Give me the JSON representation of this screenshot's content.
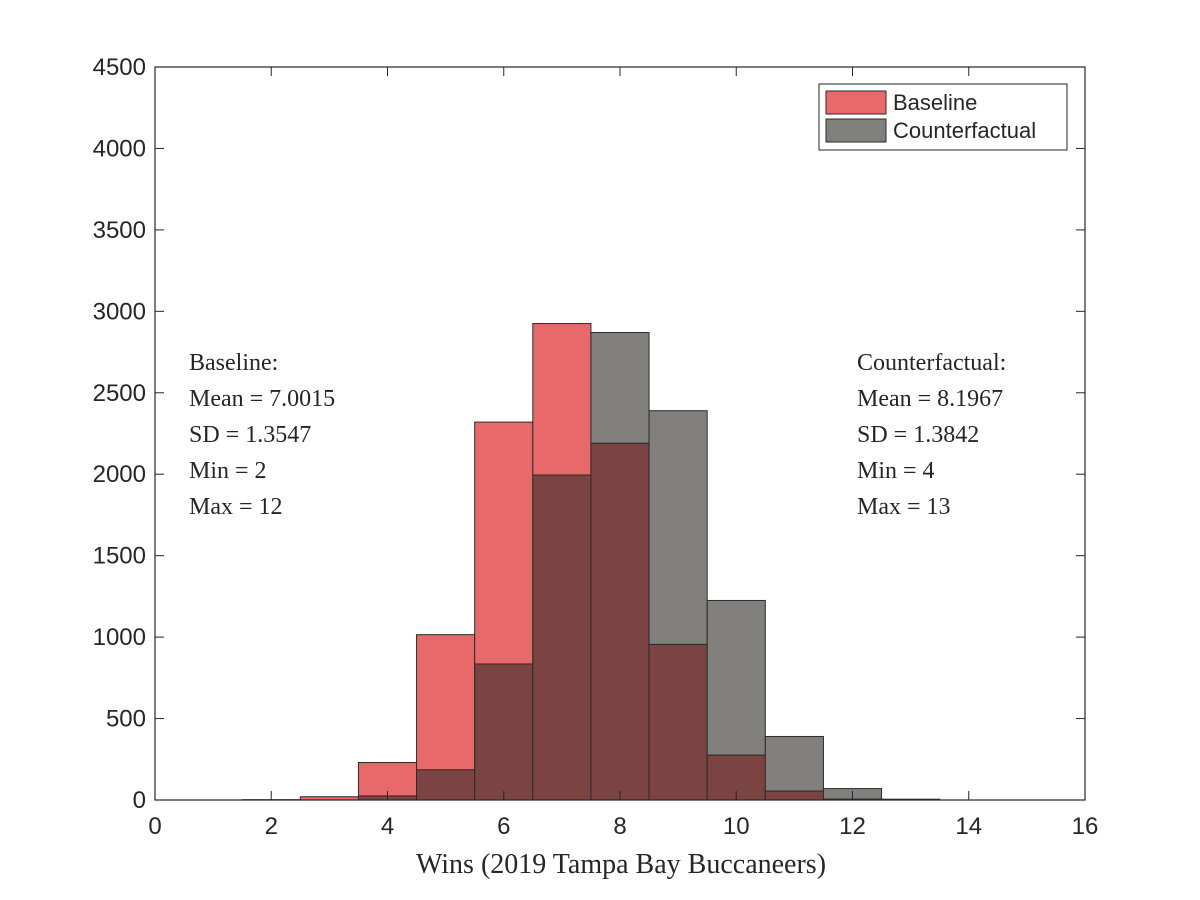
{
  "chart_data": {
    "type": "bar",
    "subtype": "overlaid-histogram",
    "title": "",
    "xlabel": "Wins (2019 Tampa Bay Buccaneers)",
    "ylabel": "",
    "xlim": [
      0,
      16
    ],
    "ylim": [
      0,
      4500
    ],
    "xticks": [
      0,
      2,
      4,
      6,
      8,
      10,
      12,
      14,
      16
    ],
    "yticks": [
      0,
      500,
      1000,
      1500,
      2000,
      2500,
      3000,
      3500,
      4000,
      4500
    ],
    "bin_width": 1,
    "bin_centers": [
      2,
      3,
      4,
      5,
      6,
      7,
      8,
      9,
      10,
      11,
      12,
      13
    ],
    "grid": false,
    "legend_position": "top-right",
    "series": [
      {
        "name": "Baseline",
        "color": "#e8696a",
        "values": [
          2,
          20,
          230,
          1015,
          2320,
          2925,
          2190,
          955,
          275,
          55,
          5,
          0
        ]
      },
      {
        "name": "Counterfactual",
        "color": "#82807c",
        "values": [
          0,
          0,
          25,
          185,
          835,
          1995,
          2870,
          2390,
          1225,
          390,
          70,
          5
        ]
      }
    ],
    "overlap_color": "#7b4342",
    "annotations": [
      {
        "series": "Baseline",
        "position": "left",
        "lines": [
          "Baseline:",
          "Mean = 7.0015",
          "SD = 1.3547",
          "Min = 2",
          "Max = 12"
        ]
      },
      {
        "series": "Counterfactual",
        "position": "right",
        "lines": [
          "Counterfactual:",
          "Mean = 8.1967",
          "SD = 1.3842",
          "Min = 4",
          "Max = 13"
        ]
      }
    ]
  }
}
